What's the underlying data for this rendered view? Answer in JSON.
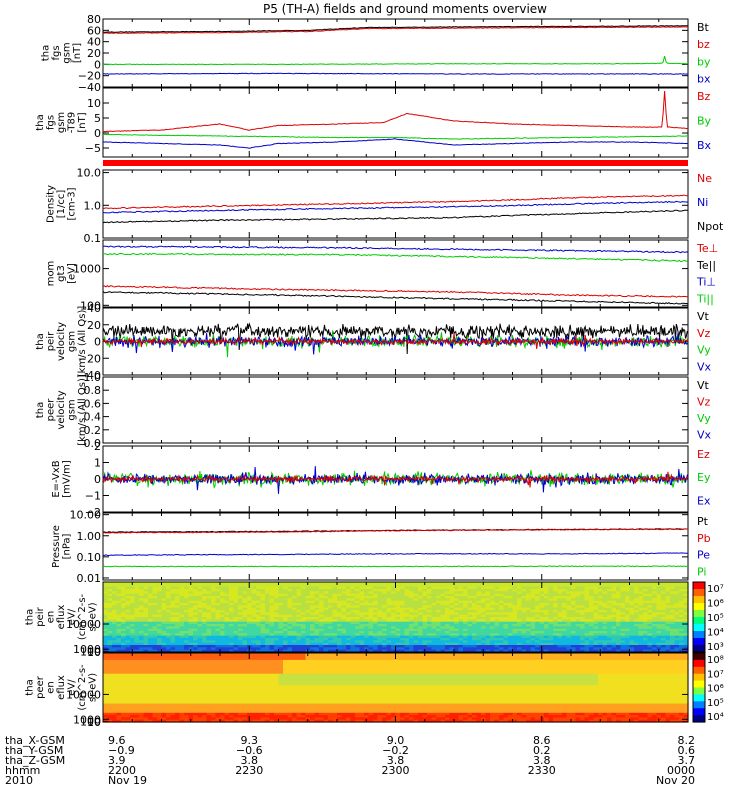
{
  "title": "P5 (TH-A) fields and ground moments overview",
  "colors": {
    "black": "#000000",
    "red": "#dd0000",
    "green": "#00cc00",
    "blue": "#0000cc",
    "bar_red": "#ff0000"
  },
  "chart_data": [
    {
      "type": "line",
      "id": "fgs-gsm",
      "ylabel": [
        "tha",
        "fgs",
        "gsm",
        "[nT]"
      ],
      "ylim": [
        -40,
        80
      ],
      "ytick_labels": [
        "80",
        "60",
        "40",
        "20",
        "0",
        "−20",
        "−40"
      ],
      "yticks": [
        80,
        60,
        40,
        20,
        0,
        -20,
        -40
      ],
      "legend": [
        "Bt",
        "bz",
        "by",
        "bx"
      ],
      "series": [
        {
          "name": "Bt",
          "color": "black",
          "x": [
            0,
            0.2,
            0.35,
            0.45,
            0.6,
            0.8,
            1.0
          ],
          "values": [
            57,
            58,
            60,
            65,
            66,
            67,
            68
          ]
        },
        {
          "name": "bz",
          "color": "red",
          "x": [
            0,
            0.2,
            0.35,
            0.45,
            0.6,
            0.8,
            1.0
          ],
          "values": [
            55,
            56,
            58,
            63,
            64,
            65,
            66
          ]
        },
        {
          "name": "by",
          "color": "green",
          "x": [
            0,
            0.3,
            0.6,
            0.9,
            0.957,
            0.96,
            0.963,
            1.0
          ],
          "values": [
            0,
            0,
            1,
            1,
            2,
            14,
            2,
            1
          ]
        },
        {
          "name": "bx",
          "color": "blue",
          "x": [
            0,
            0.3,
            0.6,
            1.0
          ],
          "values": [
            -17,
            -16,
            -17,
            -17
          ]
        }
      ]
    },
    {
      "type": "line",
      "id": "fgs-gsm-t89",
      "ylabel": [
        "tha",
        "fgs",
        "gsm",
        "-T89",
        "[nT]"
      ],
      "ylim": [
        -8,
        15
      ],
      "ytick_labels": [
        "10",
        "5",
        "0",
        "−5"
      ],
      "yticks": [
        10,
        5,
        0,
        -5
      ],
      "legend": [
        "Bz",
        "By",
        "Bx"
      ],
      "series": [
        {
          "name": "Bz",
          "color": "red",
          "x": [
            0,
            0.1,
            0.2,
            0.25,
            0.3,
            0.4,
            0.48,
            0.52,
            0.6,
            0.7,
            0.8,
            0.9,
            0.956,
            0.96,
            0.964,
            1.0
          ],
          "values": [
            0.5,
            1,
            3,
            1,
            2.5,
            3,
            3.5,
            6.5,
            4,
            3,
            2.5,
            2,
            2,
            14,
            2,
            1.5
          ]
        },
        {
          "name": "By",
          "color": "green",
          "x": [
            0,
            0.2,
            0.4,
            0.5,
            0.6,
            0.8,
            1.0
          ],
          "values": [
            -0.5,
            -1,
            -1.5,
            -1.5,
            -2,
            -1.5,
            -1
          ]
        },
        {
          "name": "Bx",
          "color": "blue",
          "x": [
            0,
            0.1,
            0.2,
            0.25,
            0.3,
            0.4,
            0.5,
            0.6,
            0.7,
            0.8,
            0.9,
            1.0
          ],
          "values": [
            -3,
            -3.5,
            -4,
            -5,
            -3.5,
            -3,
            -2,
            -4,
            -3.5,
            -3,
            -3,
            -3.5
          ]
        }
      ]
    },
    {
      "type": "line",
      "id": "density",
      "log": true,
      "ylabel": [
        "Density",
        "[1/cc]",
        "[cm-3]"
      ],
      "ylim": [
        0.1,
        12
      ],
      "ytick_labels": [
        "10.0",
        "1.0",
        "0.1"
      ],
      "yticks": [
        10,
        1,
        0.1
      ],
      "legend": [
        "Ne",
        "Ni",
        "Npot"
      ],
      "series": [
        {
          "name": "Ne",
          "color": "red",
          "x": [
            0,
            0.2,
            0.4,
            0.6,
            0.72,
            0.8,
            1.0
          ],
          "values": [
            0.8,
            0.95,
            1.1,
            1.3,
            1.5,
            1.7,
            2.0
          ]
        },
        {
          "name": "Ni",
          "color": "blue",
          "x": [
            0,
            0.2,
            0.4,
            0.6,
            0.72,
            0.8,
            1.0
          ],
          "values": [
            0.6,
            0.7,
            0.8,
            0.9,
            1.0,
            1.1,
            1.3
          ]
        },
        {
          "name": "Npot",
          "color": "black",
          "x": [
            0,
            0.2,
            0.4,
            0.6,
            0.72,
            0.8,
            1.0
          ],
          "values": [
            0.3,
            0.35,
            0.38,
            0.42,
            0.5,
            0.55,
            0.7
          ]
        }
      ]
    },
    {
      "type": "line",
      "id": "temperature",
      "log": true,
      "ylabel": [
        "mom",
        "gt3",
        "[eV]"
      ],
      "ylim": [
        90,
        6000
      ],
      "ytick_labels": [
        "1000",
        "100"
      ],
      "yticks": [
        1000,
        100
      ],
      "legend": [
        "Te⊥",
        "Te||",
        "Ti⊥",
        "Ti||"
      ],
      "series": [
        {
          "name": "Ti⊥",
          "color": "blue",
          "x": [
            0,
            0.4,
            0.7,
            1.0
          ],
          "values": [
            4000,
            3700,
            3200,
            2800
          ]
        },
        {
          "name": "Ti||",
          "color": "green",
          "x": [
            0,
            0.4,
            0.7,
            1.0
          ],
          "values": [
            2500,
            2400,
            2000,
            1600
          ]
        },
        {
          "name": "Te⊥",
          "color": "red",
          "x": [
            0,
            0.3,
            0.6,
            0.8,
            1.0
          ],
          "values": [
            330,
            270,
            230,
            190,
            170
          ]
        },
        {
          "name": "Te||",
          "color": "black",
          "x": [
            0,
            0.3,
            0.6,
            0.8,
            1.0
          ],
          "values": [
            230,
            190,
            150,
            130,
            110
          ]
        }
      ]
    },
    {
      "type": "line",
      "id": "peir-velocity",
      "noisy": true,
      "ylabel": [
        "tha",
        "peir",
        "velocity",
        "gsm",
        "[km/s (All Qs)]"
      ],
      "ylim": [
        -40,
        40
      ],
      "ytick_labels": [
        "40",
        "20",
        "0",
        "−20",
        "−40"
      ],
      "yticks": [
        40,
        20,
        0,
        -20,
        -40
      ],
      "legend": [
        "Vt",
        "Vz",
        "Vy",
        "Vx"
      ],
      "series": [
        {
          "name": "Vt",
          "color": "black",
          "mean": 12,
          "amp": 12
        },
        {
          "name": "Vy",
          "color": "green",
          "mean": 0,
          "amp": 10
        },
        {
          "name": "Vx",
          "color": "blue",
          "mean": 0,
          "amp": 9
        },
        {
          "name": "Vz",
          "color": "red",
          "mean": 0,
          "amp": 5
        }
      ]
    },
    {
      "type": "line",
      "id": "peer-velocity",
      "empty": true,
      "ylabel": [
        "tha",
        "peer",
        "velocity",
        "gsm",
        "[km/s (All Qs)]"
      ],
      "ylim": [
        0,
        1
      ],
      "ytick_labels": [
        "1.0",
        "0.8",
        "0.6",
        "0.4",
        "0.2",
        "0.0"
      ],
      "yticks": [
        1,
        0.8,
        0.6,
        0.4,
        0.2,
        0
      ],
      "legend": [
        "Vt",
        "Vz",
        "Vy",
        "Vx"
      ],
      "series": []
    },
    {
      "type": "line",
      "id": "efield",
      "noisy": true,
      "ylabel": [
        "E=-VxB",
        "[mV/m]"
      ],
      "ylim": [
        -2,
        2
      ],
      "ytick_labels": [
        "2",
        "1",
        "0",
        "−1",
        "−2"
      ],
      "yticks": [
        2,
        1,
        0,
        -1,
        -2
      ],
      "legend": [
        "Ez",
        "Ey",
        "Ex"
      ],
      "series": [
        {
          "name": "Ey",
          "color": "green",
          "mean": 0,
          "amp": 0.6
        },
        {
          "name": "Ex",
          "color": "blue",
          "mean": 0,
          "amp": 0.5
        },
        {
          "name": "Ez",
          "color": "red",
          "mean": 0,
          "amp": 0.25
        }
      ]
    },
    {
      "type": "line",
      "id": "pressure",
      "log": true,
      "ylabel": [
        "Pressure",
        "[nPa]"
      ],
      "ylim": [
        0.008,
        12
      ],
      "ytick_labels": [
        "10.00",
        "1.00",
        "0.10",
        "0.01"
      ],
      "yticks": [
        10,
        1,
        0.1,
        0.01
      ],
      "legend": [
        "Pt",
        "Pb",
        "Pe",
        "Pi"
      ],
      "series": [
        {
          "name": "Pt",
          "color": "black",
          "x": [
            0,
            0.3,
            0.5,
            0.8,
            1.0
          ],
          "values": [
            1.5,
            1.6,
            1.8,
            2.0,
            2.1
          ]
        },
        {
          "name": "Pb",
          "color": "red",
          "x": [
            0,
            0.3,
            0.5,
            0.8,
            1.0
          ],
          "values": [
            1.4,
            1.5,
            1.75,
            1.95,
            2.05
          ]
        },
        {
          "name": "Pe",
          "color": "blue",
          "x": [
            0,
            0.3,
            0.5,
            0.8,
            1.0
          ],
          "values": [
            0.12,
            0.13,
            0.14,
            0.14,
            0.15
          ]
        },
        {
          "name": "Pi",
          "color": "green",
          "x": [
            0,
            0.3,
            0.5,
            0.8,
            1.0
          ],
          "values": [
            0.035,
            0.035,
            0.035,
            0.036,
            0.036
          ]
        }
      ]
    },
    {
      "type": "heatmap",
      "id": "peir-en-eflux",
      "ylabel": [
        "tha",
        "peir",
        "en",
        "eflux",
        "eV/",
        "(cm^2-s-",
        "sr-eV)"
      ],
      "ylim": [
        8,
        25000
      ],
      "ytick_labels": [
        "10000",
        "1000",
        "100",
        "10"
      ],
      "yticks": [
        10000,
        1000,
        100,
        10
      ],
      "colorbar_labels": [
        "10⁷",
        "10⁶",
        "10⁵",
        "10⁴",
        "10³"
      ],
      "colorbar_range": [
        1000,
        10000000
      ]
    },
    {
      "type": "heatmap",
      "id": "peer-en-eflux",
      "ylabel": [
        "tha",
        "peer",
        "en",
        "eflux",
        "eV/",
        "(cm^2-s-",
        "sr-eV)"
      ],
      "ylim": [
        8,
        25000
      ],
      "ytick_labels": [
        "10000",
        "1000",
        "100",
        "10"
      ],
      "yticks": [
        10000,
        1000,
        100,
        10
      ],
      "colorbar_labels": [
        "10⁸",
        "10⁷",
        "10⁶",
        "10⁵",
        "10⁴"
      ],
      "colorbar_range": [
        10000,
        100000000
      ]
    }
  ],
  "xaxis": {
    "row_labels": [
      "tha_X-GSM",
      "tha_Y-GSM",
      "tha_Z-GSM",
      "hhmm",
      "2010"
    ],
    "ticks": [
      {
        "pos": 0,
        "values": [
          "9.6",
          "−0.9",
          "3.9",
          "2200",
          "Nov 19"
        ]
      },
      {
        "pos": 0.25,
        "values": [
          "9.3",
          "−0.6",
          "3.8",
          "2230",
          ""
        ]
      },
      {
        "pos": 0.5,
        "values": [
          "9.0",
          "−0.2",
          "3.8",
          "2300",
          ""
        ]
      },
      {
        "pos": 0.75,
        "values": [
          "8.6",
          "0.2",
          "3.8",
          "2330",
          ""
        ]
      },
      {
        "pos": 1.0,
        "values": [
          "8.2",
          "0.6",
          "3.7",
          "0000",
          "Nov 20"
        ]
      }
    ]
  }
}
